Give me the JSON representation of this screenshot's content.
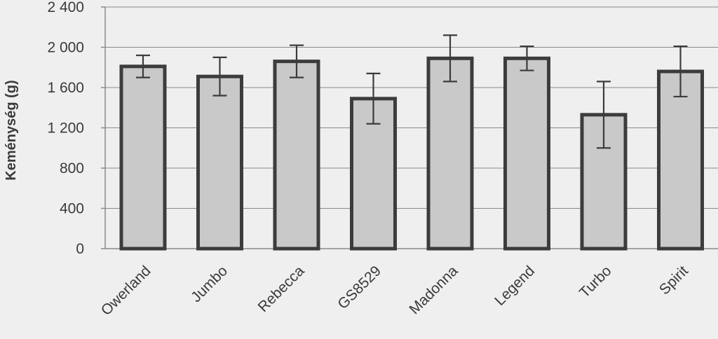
{
  "chart_data": {
    "type": "bar",
    "title": "",
    "xlabel": "",
    "ylabel": "Keménység (g)",
    "ylim": [
      0,
      2400
    ],
    "yticks": [
      0,
      400,
      800,
      1200,
      1600,
      2000,
      2400
    ],
    "ytick_labels": [
      "0",
      "400",
      "800",
      "1 200",
      "1 600",
      "2 000",
      "2 400"
    ],
    "grid": true,
    "categories": [
      "Owerland",
      "Jumbo",
      "Rebecca",
      "GS8529",
      "Madonna",
      "Legend",
      "Turbo",
      "Spirit"
    ],
    "values": [
      1810,
      1710,
      1860,
      1490,
      1890,
      1890,
      1330,
      1760
    ],
    "error": [
      110,
      190,
      160,
      250,
      230,
      120,
      330,
      250
    ],
    "colors": {
      "bar_fill": "#c9c9c9",
      "bar_edge": "#3c3c3c",
      "grid": "#8a8a8a",
      "background": "#efefef"
    }
  }
}
